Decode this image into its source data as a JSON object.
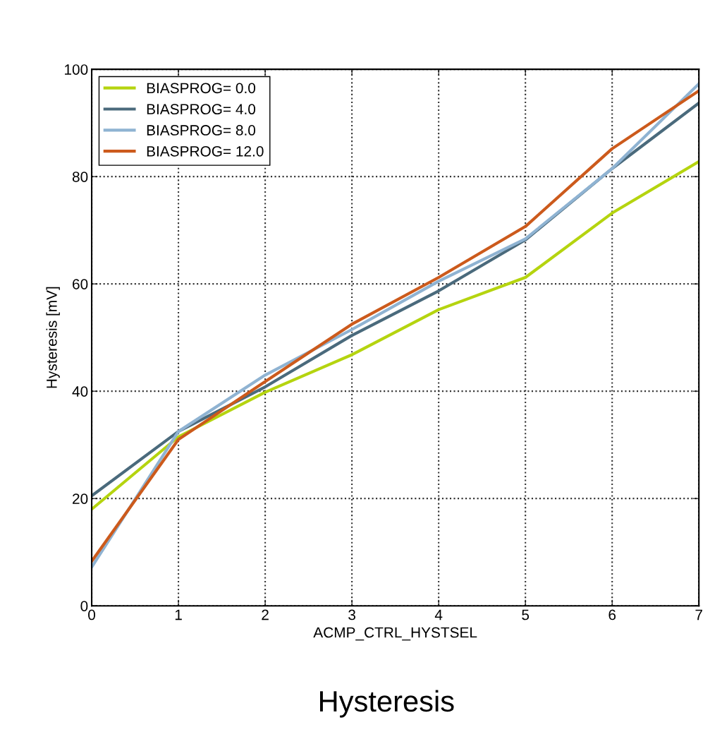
{
  "chart_data": {
    "type": "line",
    "title": "Hysteresis",
    "xlabel": "ACMP_CTRL_HYSTSEL",
    "ylabel": "Hysteresis [mV]",
    "x": [
      0,
      1,
      2,
      3,
      4,
      5,
      6,
      7
    ],
    "series": [
      {
        "name": "BIASPROG= 0.0",
        "color": "#b5d40f",
        "values": [
          18,
          31.5,
          39.8,
          46.8,
          55.2,
          61.2,
          73.2,
          82.8
        ]
      },
      {
        "name": "BIASPROG= 4.0",
        "color": "#4a6a7c",
        "values": [
          20.5,
          32.5,
          40.8,
          50.4,
          58.7,
          68.2,
          81.5,
          93.7
        ]
      },
      {
        "name": "BIASPROG= 8.0",
        "color": "#8fb3d2",
        "values": [
          7.2,
          32.5,
          43,
          51.5,
          60.5,
          68.4,
          81.5,
          97.3
        ]
      },
      {
        "name": "BIASPROG= 12.0",
        "color": "#cc5a1c",
        "values": [
          8.3,
          31,
          41.8,
          52.5,
          61.2,
          70.7,
          85.2,
          96
        ]
      }
    ],
    "xlim": [
      0,
      7
    ],
    "xticks": [
      0,
      1,
      2,
      3,
      4,
      5,
      6,
      7
    ],
    "ylim": [
      0,
      100
    ],
    "yticks": [
      0,
      20,
      40,
      60,
      80,
      100
    ],
    "grid": true,
    "legend": "top left",
    "marker": "none",
    "line_style": "solid"
  }
}
